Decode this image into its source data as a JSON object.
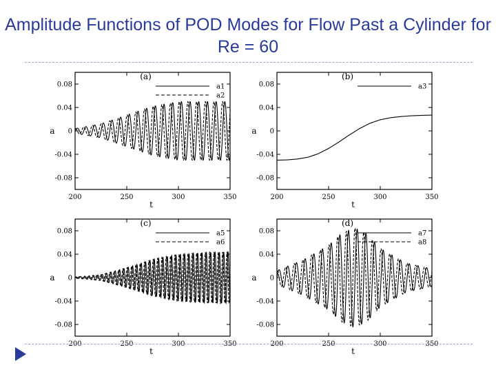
{
  "title": "Amplitude Functions of POD Modes for Flow Past a Cylinder for Re = 60",
  "chart_data": [
    {
      "type": "line",
      "panel": "(a)",
      "xlabel": "t",
      "ylabel": "a",
      "xlim": [
        200,
        350
      ],
      "ylim": [
        -0.1,
        0.1
      ],
      "xticks": [
        "200",
        "250",
        "300",
        "350"
      ],
      "yticks": [
        {
          "v": 0.08,
          "label": "0.08"
        },
        {
          "v": 0.04,
          "label": "0.04"
        },
        {
          "v": 0,
          "label": "0"
        },
        {
          "v": -0.04,
          "label": "-0.04"
        },
        {
          "v": -0.08,
          "label": "-0.08"
        }
      ],
      "legend": "top-right",
      "series": [
        {
          "name": "a1",
          "style": "solid",
          "model": "oscillation",
          "x": [
            200,
            225,
            250,
            275,
            300,
            325,
            350
          ],
          "amplitude": [
            0.004,
            0.012,
            0.027,
            0.042,
            0.05,
            0.05,
            0.05
          ],
          "period": 8.4,
          "phase": 0,
          "offset": 0
        },
        {
          "name": "a2",
          "style": "dashed",
          "model": "oscillation",
          "x": [
            200,
            225,
            250,
            275,
            300,
            325,
            350
          ],
          "amplitude": [
            0.004,
            0.012,
            0.027,
            0.042,
            0.05,
            0.05,
            0.05
          ],
          "period": 8.4,
          "phase": 1.57,
          "offset": 0
        }
      ]
    },
    {
      "type": "line",
      "panel": "(b)",
      "xlabel": "t",
      "ylabel": "a",
      "xlim": [
        200,
        350
      ],
      "ylim": [
        -0.1,
        0.1
      ],
      "xticks": [
        "200",
        "250",
        "300",
        "350"
      ],
      "yticks": [
        {
          "v": 0.08,
          "label": "0.08"
        },
        {
          "v": 0.04,
          "label": "0.04"
        },
        {
          "v": 0,
          "label": "0"
        },
        {
          "v": -0.04,
          "label": "-0.04"
        },
        {
          "v": -0.08,
          "label": "-0.08"
        }
      ],
      "legend": "top-right",
      "series": [
        {
          "name": "a3",
          "style": "solid",
          "model": "curve",
          "x": [
            200,
            210,
            220,
            230,
            240,
            250,
            260,
            270,
            280,
            290,
            300,
            310,
            320,
            330,
            340,
            350
          ],
          "y": [
            -0.05,
            -0.0495,
            -0.048,
            -0.045,
            -0.039,
            -0.03,
            -0.019,
            -0.007,
            0.004,
            0.013,
            0.019,
            0.0225,
            0.0245,
            0.0258,
            0.0265,
            0.027
          ]
        }
      ]
    },
    {
      "type": "line",
      "panel": "(c)",
      "xlabel": "t",
      "ylabel": "a",
      "xlim": [
        200,
        350
      ],
      "ylim": [
        -0.1,
        0.1
      ],
      "xticks": [
        "200",
        "250",
        "300",
        "350"
      ],
      "yticks": [
        {
          "v": 0.08,
          "label": "0.08"
        },
        {
          "v": 0.04,
          "label": "0.04"
        },
        {
          "v": 0,
          "label": "0"
        },
        {
          "v": -0.04,
          "label": "-0.04"
        },
        {
          "v": -0.08,
          "label": "-0.08"
        }
      ],
      "legend": "top-right",
      "series": [
        {
          "name": "a5",
          "style": "solid",
          "model": "oscillation",
          "x": [
            200,
            225,
            250,
            275,
            300,
            325,
            350
          ],
          "amplitude": [
            0.001,
            0.005,
            0.017,
            0.031,
            0.04,
            0.043,
            0.044
          ],
          "period": 4.2,
          "phase": 0,
          "offset": 0
        },
        {
          "name": "a6",
          "style": "dashed",
          "model": "oscillation",
          "x": [
            200,
            225,
            250,
            275,
            300,
            325,
            350
          ],
          "amplitude": [
            0.001,
            0.005,
            0.017,
            0.031,
            0.04,
            0.043,
            0.044
          ],
          "period": 4.2,
          "phase": 1.57,
          "offset": 0
        }
      ]
    },
    {
      "type": "line",
      "panel": "(d)",
      "xlabel": "t",
      "ylabel": "a",
      "xlim": [
        200,
        350
      ],
      "ylim": [
        -0.1,
        0.1
      ],
      "xticks": [
        "200",
        "250",
        "300",
        "350"
      ],
      "yticks": [
        {
          "v": 0.08,
          "label": "0.08"
        },
        {
          "v": 0.04,
          "label": "0.04"
        },
        {
          "v": 0,
          "label": "0"
        },
        {
          "v": -0.04,
          "label": "-0.04"
        },
        {
          "v": -0.08,
          "label": "-0.08"
        }
      ],
      "legend": "top-right",
      "series": [
        {
          "name": "a7",
          "style": "solid",
          "model": "oscillation",
          "x": [
            200,
            225,
            250,
            262,
            275,
            287,
            300,
            325,
            350
          ],
          "amplitude": [
            0.012,
            0.03,
            0.055,
            0.075,
            0.085,
            0.075,
            0.05,
            0.025,
            0.015
          ],
          "period": 8.4,
          "phase": 0,
          "offset": 0
        },
        {
          "name": "a8",
          "style": "dashed",
          "model": "oscillation",
          "x": [
            200,
            225,
            250,
            262,
            275,
            287,
            300,
            325,
            350
          ],
          "amplitude": [
            0.012,
            0.03,
            0.055,
            0.075,
            0.085,
            0.075,
            0.05,
            0.025,
            0.015
          ],
          "period": 8.4,
          "phase": 1.57,
          "offset": 0
        }
      ]
    }
  ]
}
